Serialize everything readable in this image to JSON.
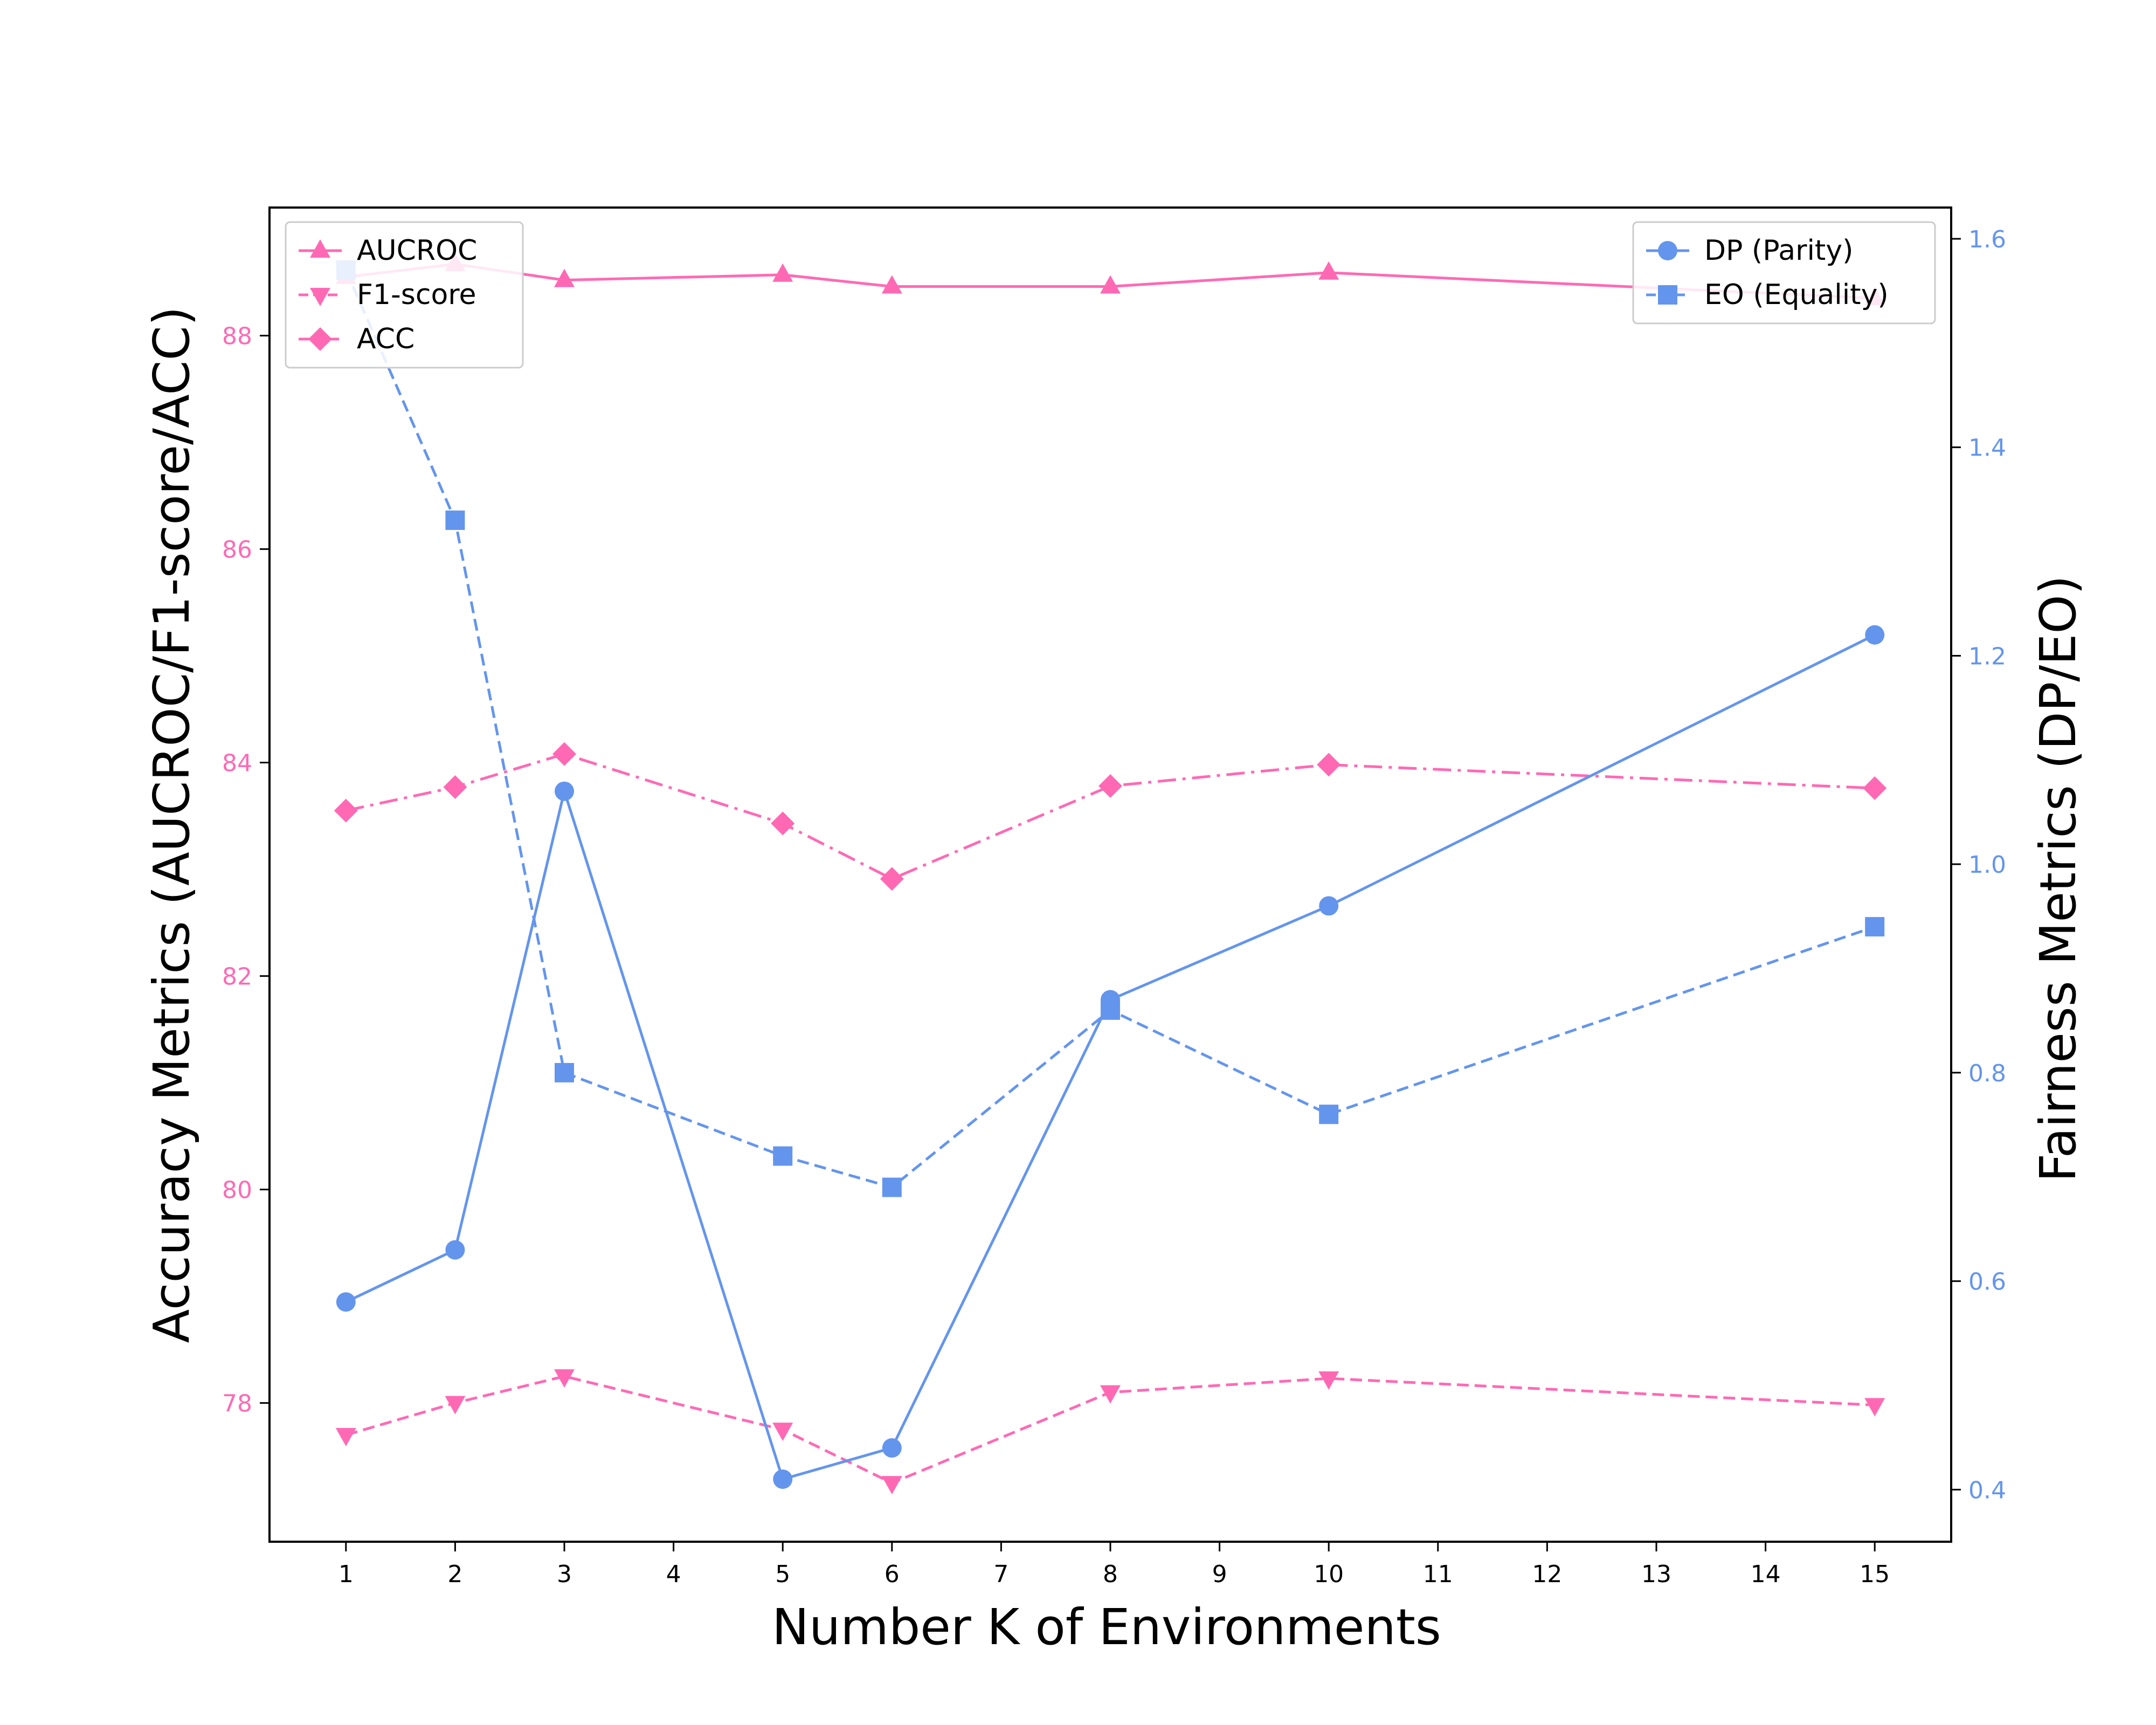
{
  "chart_data": {
    "type": "line",
    "xlabel": "Number K of Environments",
    "ylabel_left": "Accuracy Metrics (AUCROC/F1-score/ACC)",
    "ylabel_right": "Fairness Metrics (DP/EO)",
    "x": [
      1,
      2,
      3,
      5,
      6,
      8,
      10,
      15
    ],
    "x_ticks": [
      1,
      2,
      3,
      4,
      5,
      6,
      7,
      8,
      9,
      10,
      11,
      12,
      13,
      14,
      15
    ],
    "x_tick_labels": [
      "1",
      "2",
      "3",
      "4",
      "5",
      "6",
      "7",
      "8",
      "9",
      "10",
      "11",
      "12",
      "13",
      "14",
      "15"
    ],
    "xlim": [
      0.3,
      15.7
    ],
    "left_axis": {
      "ylim": [
        76.7,
        89.2
      ],
      "ticks": [
        78,
        80,
        82,
        84,
        86,
        88
      ],
      "tick_labels": [
        "78",
        "80",
        "82",
        "84",
        "86",
        "88"
      ],
      "color": "#ff69b4"
    },
    "right_axis": {
      "ylim": [
        0.35,
        1.63
      ],
      "ticks": [
        0.4,
        0.6,
        0.8,
        1.0,
        1.2,
        1.4,
        1.6
      ],
      "tick_labels": [
        "0.4",
        "0.6",
        "0.8",
        "1.0",
        "1.2",
        "1.4",
        "1.6"
      ],
      "color": "#6495ed"
    },
    "series": [
      {
        "name": "AUCROC",
        "axis": "left",
        "color": "#ff69b4",
        "linestyle": "solid",
        "marker": "triangle-up",
        "values": [
          88.55,
          88.67,
          88.52,
          88.57,
          88.46,
          88.46,
          88.59,
          88.35
        ]
      },
      {
        "name": "F1-score",
        "axis": "left",
        "color": "#ff69b4",
        "linestyle": "dashed",
        "marker": "triangle-down",
        "values": [
          77.7,
          78.0,
          78.25,
          77.75,
          77.25,
          78.1,
          78.23,
          77.98
        ]
      },
      {
        "name": "ACC",
        "axis": "left",
        "color": "#ff69b4",
        "linestyle": "dashdot",
        "marker": "diamond",
        "values": [
          83.55,
          83.77,
          84.08,
          83.43,
          82.91,
          83.78,
          83.98,
          83.76
        ]
      },
      {
        "name": "DP (Parity)",
        "axis": "right",
        "color": "#6495ed",
        "linestyle": "solid",
        "marker": "circle",
        "values": [
          0.58,
          0.63,
          1.07,
          0.41,
          0.44,
          0.87,
          0.96,
          1.22
        ]
      },
      {
        "name": "EO (Equality)",
        "axis": "right",
        "color": "#6495ed",
        "linestyle": "dashed",
        "marker": "square",
        "values": [
          1.57,
          1.33,
          0.8,
          0.72,
          0.69,
          0.86,
          0.76,
          0.94
        ]
      }
    ],
    "legends": [
      {
        "placement": "top-left",
        "entries": [
          "AUCROC",
          "F1-score",
          "ACC"
        ]
      },
      {
        "placement": "top-right",
        "entries": [
          "DP (Parity)",
          "EO (Equality)"
        ]
      }
    ],
    "grid": false
  }
}
